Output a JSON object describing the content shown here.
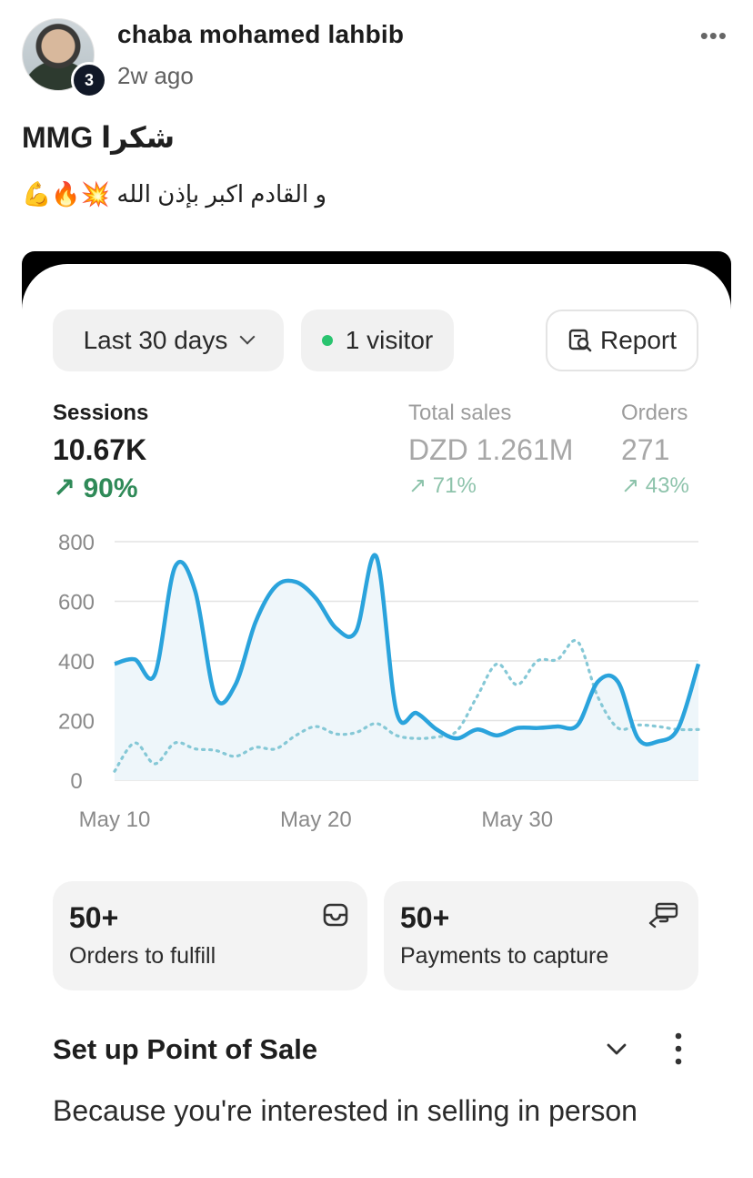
{
  "post": {
    "author": "chaba mohamed lahbib",
    "badge": "3",
    "time": "2w ago",
    "more_icon": "more-horizontal-icon",
    "line1": "شكرا MMG",
    "line2": "و القادم اكبر بإذن الله 💥🔥💪"
  },
  "dashboard": {
    "range_label": "Last 30 days",
    "visitor_label": "1 visitor",
    "report_label": "Report",
    "metrics": [
      {
        "label": "Sessions",
        "value": "10.67K",
        "change": "↗ 90%"
      },
      {
        "label": "Total sales",
        "value": "DZD 1.261M",
        "change": "↗ 71%"
      },
      {
        "label": "Orders",
        "value": "271",
        "change": "↗ 43%"
      }
    ],
    "tiles": [
      {
        "value": "50+",
        "label": "Orders to fulfill",
        "icon": "inbox-icon"
      },
      {
        "value": "50+",
        "label": "Payments to capture",
        "icon": "hand-card-icon"
      }
    ],
    "setup": {
      "title": "Set up Point of Sale",
      "description": "Because you're interested in selling in person"
    }
  },
  "chart_data": {
    "type": "line",
    "title": "",
    "xlabel": "",
    "ylabel": "",
    "ylim": [
      0,
      800
    ],
    "y_ticks": [
      0,
      200,
      400,
      600,
      800
    ],
    "x_ticks": [
      {
        "label": "May 10",
        "day": 0
      },
      {
        "label": "May 20",
        "day": 10
      },
      {
        "label": "May 30",
        "day": 20
      }
    ],
    "grid": true,
    "series": [
      {
        "style": "solid",
        "color": "#2aa3dc",
        "x": [
          0,
          1,
          2,
          3,
          4,
          5,
          6,
          7,
          8,
          9,
          10,
          11,
          12,
          13,
          14,
          15,
          16,
          17,
          18,
          19,
          20,
          21,
          22,
          23,
          24,
          25,
          26,
          27,
          28,
          29
        ],
        "values": [
          390,
          405,
          355,
          715,
          635,
          280,
          320,
          530,
          650,
          665,
          610,
          510,
          500,
          750,
          230,
          225,
          170,
          140,
          170,
          150,
          175,
          175,
          180,
          185,
          330,
          330,
          140,
          130,
          175,
          390
        ]
      },
      {
        "style": "dotted",
        "color": "#85c8d6",
        "x": [
          0,
          1,
          2,
          3,
          4,
          5,
          6,
          7,
          8,
          9,
          10,
          11,
          12,
          13,
          14,
          15,
          16,
          17,
          18,
          19,
          20,
          21,
          22,
          23,
          24,
          25,
          26,
          27,
          28,
          29
        ],
        "values": [
          30,
          125,
          55,
          125,
          105,
          100,
          80,
          110,
          105,
          150,
          180,
          155,
          160,
          190,
          150,
          140,
          145,
          165,
          280,
          390,
          320,
          400,
          405,
          465,
          280,
          175,
          185,
          180,
          170,
          170
        ]
      }
    ]
  }
}
